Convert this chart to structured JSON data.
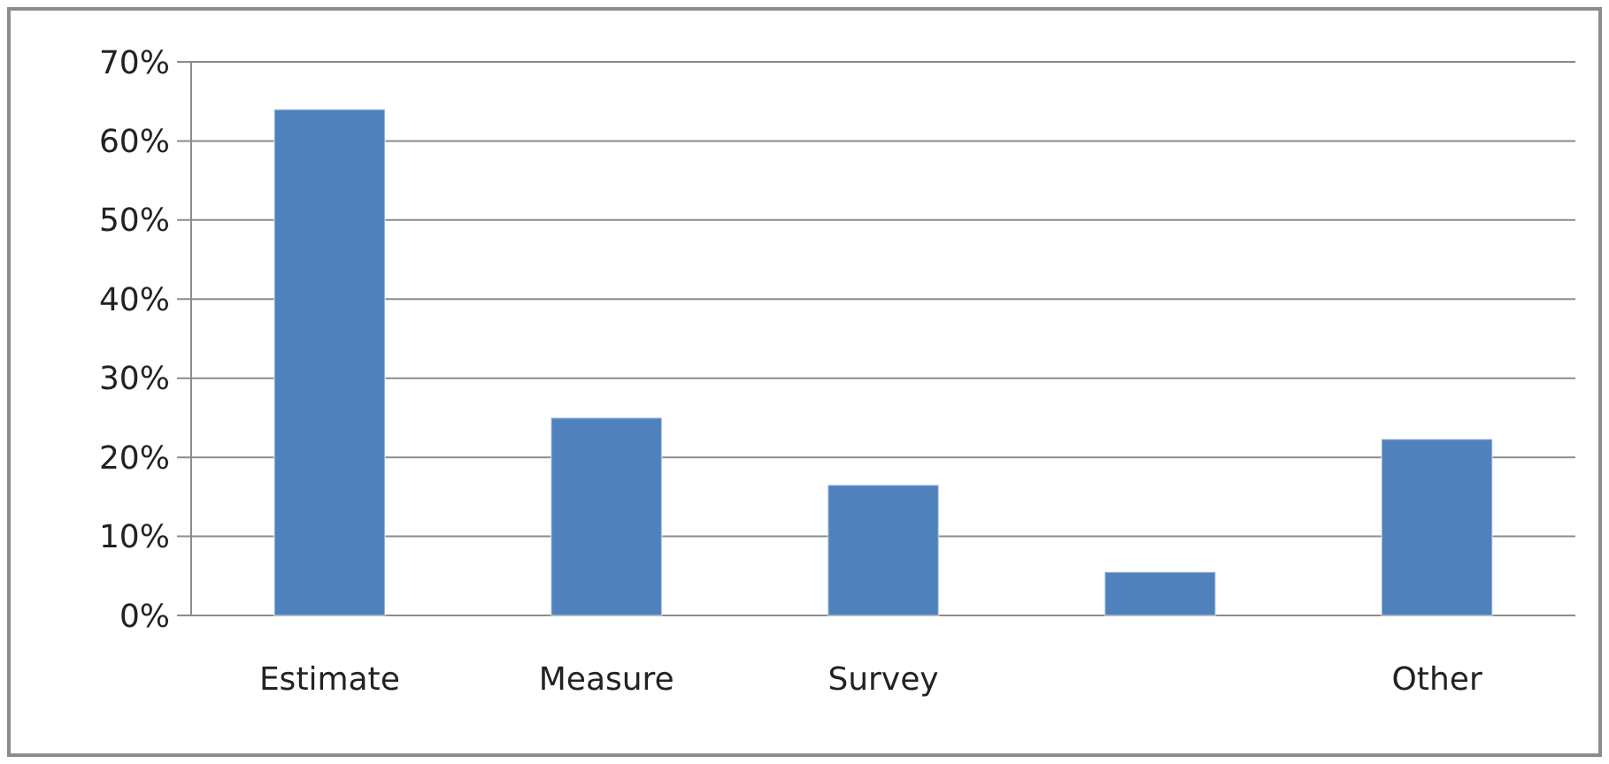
{
  "chart_data": {
    "type": "bar",
    "categories": [
      "Estimate",
      "Measure",
      "Survey",
      null,
      "Other"
    ],
    "values": [
      64,
      25,
      16.5,
      5.5,
      22.3
    ],
    "color": "#4f81bd",
    "ylim": [
      0,
      70
    ],
    "yticks": [
      {
        "value": 0,
        "label": "0%"
      },
      {
        "value": 10,
        "label": "10%"
      },
      {
        "value": 20,
        "label": "20%"
      },
      {
        "value": 30,
        "label": "30%"
      },
      {
        "value": 40,
        "label": "40%"
      },
      {
        "value": 50,
        "label": "50%"
      },
      {
        "value": 60,
        "label": "60%"
      },
      {
        "value": 70,
        "label": "70%"
      }
    ],
    "grid": "y"
  }
}
